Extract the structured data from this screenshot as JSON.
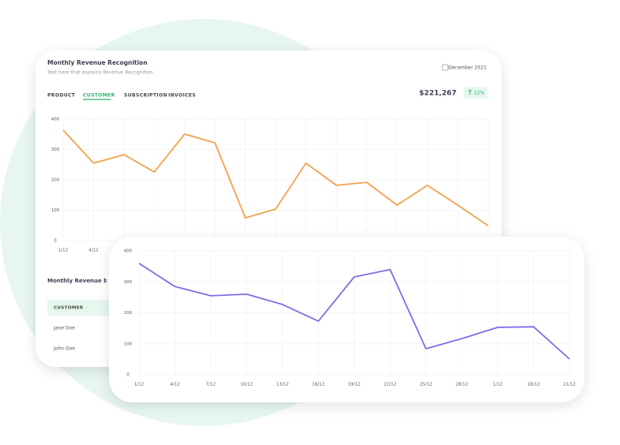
{
  "header": {
    "title": "Monthly Revenue Recognition",
    "subtitle": "Text here that explains Revenue Recognition.",
    "date": "December 2021",
    "amount": "$221,267",
    "change": "22%"
  },
  "tabs": [
    "PRODUCT",
    "CUSTOMER",
    "SUBSCRIPTION",
    "INVOICES"
  ],
  "section_title": "Monthly Revenue by P",
  "table": {
    "header": "CUSTOMER",
    "rows": [
      "Jane Doe",
      "John Doe"
    ]
  },
  "chart_data": [
    {
      "type": "line",
      "categories": [
        "1/12",
        "4/12",
        null,
        null,
        null,
        null,
        null,
        null,
        null,
        null,
        null,
        null,
        null,
        null,
        null
      ],
      "values": [
        364,
        255,
        283,
        226,
        351,
        322,
        75,
        104,
        255,
        182,
        192,
        117,
        182,
        117,
        49
      ],
      "color": "#f5a04a",
      "ylim": [
        0,
        400
      ],
      "yticks": [
        0,
        100,
        200,
        300,
        400
      ],
      "grid": true
    },
    {
      "type": "line",
      "categories": [
        "1/12",
        "4/12",
        "7/12",
        "10/12",
        "13/12",
        "16/12",
        "19/12",
        "22/12",
        "25/12",
        "28/12",
        "1/12",
        "18/12",
        "21/12"
      ],
      "values": [
        360,
        285,
        255,
        260,
        227,
        173,
        316,
        340,
        84,
        117,
        153,
        155,
        51
      ],
      "color": "#7b6ee6",
      "ylim": [
        0,
        400
      ],
      "yticks": [
        0,
        100,
        200,
        300,
        400
      ],
      "grid": true
    }
  ]
}
